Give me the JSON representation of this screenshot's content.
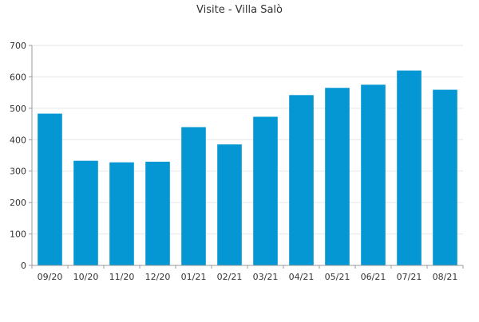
{
  "chart_data": {
    "type": "bar",
    "title": "Visite - Villa Salò",
    "xlabel": "",
    "ylabel": "",
    "categories": [
      "09/20",
      "10/20",
      "11/20",
      "12/20",
      "01/21",
      "02/21",
      "03/21",
      "04/21",
      "05/21",
      "06/21",
      "07/21",
      "08/21"
    ],
    "values": [
      483,
      333,
      328,
      330,
      440,
      385,
      473,
      542,
      565,
      575,
      620,
      559
    ],
    "ylim": [
      0,
      700
    ],
    "yticks": [
      0,
      100,
      200,
      300,
      400,
      500,
      600,
      700
    ],
    "grid": true,
    "legend": "none",
    "colors": {
      "bar": "#0597d3",
      "axis": "#999999",
      "grid": "#e6e6e6",
      "text": "#333333"
    }
  }
}
